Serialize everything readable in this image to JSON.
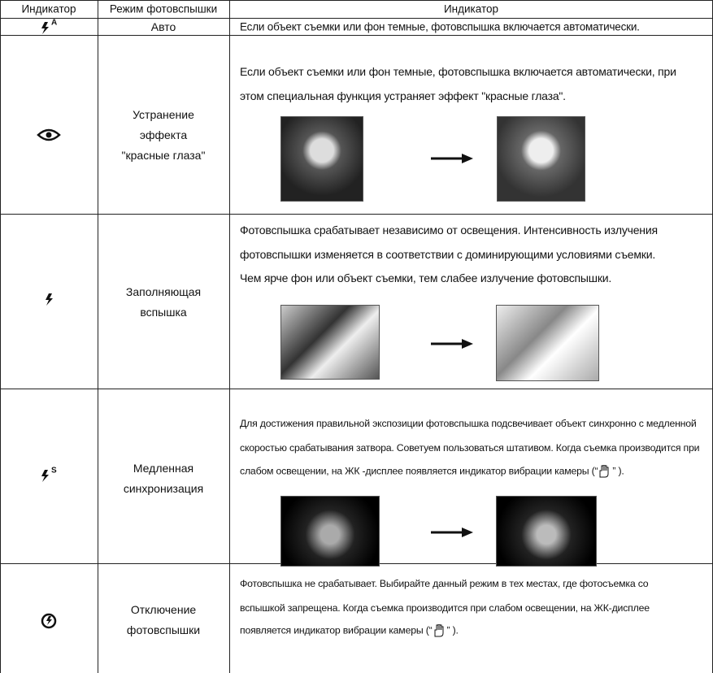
{
  "header": [
    "Индикатор",
    "Режим фотовспышки",
    "Индикатор"
  ],
  "rows": [
    {
      "icon_letter": "A",
      "mode": [
        "Авто"
      ],
      "text": [
        "Если объект съемки или фон темные, фотовспышка включается автоматически."
      ]
    },
    {
      "mode": [
        "Устранение",
        "эффекта",
        "\"красные глаза\""
      ],
      "text": [
        "Если объект съемки или фон темные, фотовспышка включается автоматически, при",
        "этом специальная функция устраняет эффект \"красные глаза\"."
      ]
    },
    {
      "mode": [
        "Заполняющая",
        "вспышка"
      ],
      "text": [
        "Фотовспышка срабатывает независимо от освещения. Интенсивность излучения",
        "фотовспышки изменяется в соответствии с доминирующими условиями съемки.",
        "Чем ярче фон или объект съемки, тем слабее излучение фотовспышки."
      ]
    },
    {
      "icon_letter": "S",
      "mode": [
        "Медленная",
        "синхронизация"
      ],
      "text": [
        "Для достижения правильной экспозиции фотовспышка подсвечивает объект синхронно с медленной",
        "скоростью срабатывания затвора. Советуем пользоваться штативом. Когда съемка производится при",
        "слабом освещении, на ЖК -дисплее появляется индикатор вибрации камеры (“"
      ],
      "text_tail": "” )."
    },
    {
      "mode": [
        "Отключение",
        "фотовспышки"
      ],
      "text": [
        "Фотовспышка не срабатывает. Выбирайте данный режим в тех местах, где фотосъемка со",
        "вспышкой запрещена. Когда съемка производится при слабом освещении, на ЖК-дисплее",
        "появляется индикатор вибрации камеры (“"
      ],
      "text_tail": "” )."
    }
  ]
}
